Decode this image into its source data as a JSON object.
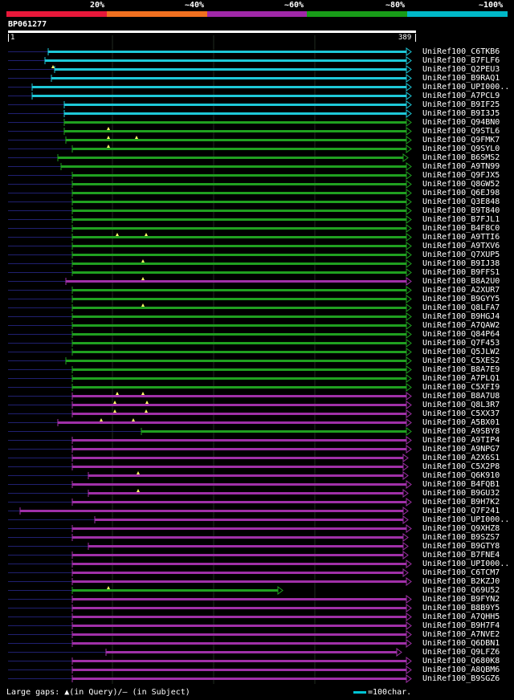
{
  "legend": {
    "labels": [
      "20%",
      "~40%",
      "~60%",
      "~80%",
      "~100%"
    ],
    "colors": [
      "#e8183a",
      "#f07020",
      "#a028a8",
      "#189c18",
      "#00b8c8"
    ]
  },
  "query": {
    "id": "BP061277",
    "start": "1",
    "end": "389"
  },
  "colors": {
    "cyan": "#1ec8d8",
    "green": "#20a020",
    "purple": "#a030a8",
    "dark": "#202070",
    "gap": "#ffff66"
  },
  "hits": [
    {
      "name": "UniRef100_C6TKB6",
      "color": "cyan",
      "start": 60,
      "end": 512,
      "arrow": true,
      "gaps": []
    },
    {
      "name": "UniRef100_B7FLF6",
      "color": "cyan",
      "start": 56,
      "end": 512,
      "arrow": true,
      "gaps": []
    },
    {
      "name": "UniRef100_Q2PEU3",
      "color": "cyan",
      "start": 68,
      "end": 512,
      "arrow": true,
      "gaps": [
        66
      ]
    },
    {
      "name": "UniRef100_B9RAQ1",
      "color": "cyan",
      "start": 64,
      "end": 512,
      "arrow": true,
      "gaps": []
    },
    {
      "name": "UniRef100_UPI000..",
      "color": "cyan",
      "start": 40,
      "end": 512,
      "arrow": true,
      "gaps": []
    },
    {
      "name": "UniRef100_A7PCL9",
      "color": "cyan",
      "start": 40,
      "end": 512,
      "arrow": true,
      "gaps": []
    },
    {
      "name": "UniRef100_B9IF25",
      "color": "cyan",
      "start": 80,
      "end": 512,
      "arrow": true,
      "gaps": []
    },
    {
      "name": "UniRef100_B9I3J5",
      "color": "cyan",
      "start": 80,
      "end": 512,
      "arrow": true,
      "gaps": []
    },
    {
      "name": "UniRef100_Q94BN0",
      "color": "green",
      "start": 80,
      "end": 512,
      "arrow": true,
      "gaps": []
    },
    {
      "name": "UniRef100_Q9STL6",
      "color": "green",
      "start": 80,
      "end": 512,
      "arrow": true,
      "gaps": [
        135
      ]
    },
    {
      "name": "UniRef100_Q9FMK7",
      "color": "green",
      "start": 82,
      "end": 512,
      "arrow": true,
      "gaps": [
        135,
        170
      ]
    },
    {
      "name": "UniRef100_Q9SYL0",
      "color": "green",
      "start": 90,
      "end": 512,
      "arrow": true,
      "gaps": [
        135
      ]
    },
    {
      "name": "UniRef100_B6SMS2",
      "color": "green",
      "start": 72,
      "end": 508,
      "arrow": true,
      "gaps": []
    },
    {
      "name": "UniRef100_A9TN99",
      "color": "green",
      "start": 76,
      "end": 512,
      "arrow": true,
      "gaps": []
    },
    {
      "name": "UniRef100_Q9FJX5",
      "color": "green",
      "start": 90,
      "end": 512,
      "arrow": true,
      "gaps": []
    },
    {
      "name": "UniRef100_Q8GW52",
      "color": "green",
      "start": 90,
      "end": 512,
      "arrow": true,
      "gaps": []
    },
    {
      "name": "UniRef100_Q6EJ98",
      "color": "green",
      "start": 90,
      "end": 512,
      "arrow": true,
      "gaps": []
    },
    {
      "name": "UniRef100_Q3E848",
      "color": "green",
      "start": 90,
      "end": 512,
      "arrow": true,
      "gaps": []
    },
    {
      "name": "UniRef100_B9T840",
      "color": "green",
      "start": 90,
      "end": 512,
      "arrow": true,
      "gaps": []
    },
    {
      "name": "UniRef100_B7FJL1",
      "color": "green",
      "start": 90,
      "end": 512,
      "arrow": true,
      "gaps": []
    },
    {
      "name": "UniRef100_B4F8C0",
      "color": "green",
      "start": 90,
      "end": 512,
      "arrow": true,
      "gaps": []
    },
    {
      "name": "UniRef100_A9TTI6",
      "color": "green",
      "start": 90,
      "end": 512,
      "arrow": true,
      "gaps": [
        146,
        182
      ]
    },
    {
      "name": "UniRef100_A9TXV6",
      "color": "green",
      "start": 90,
      "end": 512,
      "arrow": true,
      "gaps": []
    },
    {
      "name": "UniRef100_Q7XUP5",
      "color": "green",
      "start": 90,
      "end": 512,
      "arrow": true,
      "gaps": []
    },
    {
      "name": "UniRef100_B9IJ38",
      "color": "green",
      "start": 90,
      "end": 512,
      "arrow": true,
      "gaps": [
        178
      ]
    },
    {
      "name": "UniRef100_B9FFS1",
      "color": "green",
      "start": 90,
      "end": 512,
      "arrow": true,
      "gaps": []
    },
    {
      "name": "UniRef100_B8A2U0",
      "color": "purple",
      "start": 82,
      "end": 512,
      "arrow": true,
      "gaps": [
        178
      ]
    },
    {
      "name": "UniRef100_A2XUR7",
      "color": "green",
      "start": 90,
      "end": 512,
      "arrow": true,
      "gaps": []
    },
    {
      "name": "UniRef100_B9GYY5",
      "color": "green",
      "start": 90,
      "end": 512,
      "arrow": true,
      "gaps": []
    },
    {
      "name": "UniRef100_Q8LFA7",
      "color": "green",
      "start": 90,
      "end": 512,
      "arrow": true,
      "gaps": [
        178
      ]
    },
    {
      "name": "UniRef100_B9HGJ4",
      "color": "green",
      "start": 90,
      "end": 512,
      "arrow": true,
      "gaps": []
    },
    {
      "name": "UniRef100_A7QAW2",
      "color": "green",
      "start": 90,
      "end": 512,
      "arrow": true,
      "gaps": []
    },
    {
      "name": "UniRef100_Q84P64",
      "color": "green",
      "start": 90,
      "end": 512,
      "arrow": true,
      "gaps": []
    },
    {
      "name": "UniRef100_Q7F453",
      "color": "green",
      "start": 90,
      "end": 512,
      "arrow": true,
      "gaps": []
    },
    {
      "name": "UniRef100_Q5JLW2",
      "color": "green",
      "start": 90,
      "end": 512,
      "arrow": true,
      "gaps": []
    },
    {
      "name": "UniRef100_C5XES2",
      "color": "green",
      "start": 82,
      "end": 512,
      "arrow": true,
      "gaps": []
    },
    {
      "name": "UniRef100_B8A7E9",
      "color": "green",
      "start": 90,
      "end": 512,
      "arrow": true,
      "gaps": []
    },
    {
      "name": "UniRef100_A7PLQ1",
      "color": "green",
      "start": 90,
      "end": 512,
      "arrow": true,
      "gaps": []
    },
    {
      "name": "UniRef100_C5XFI9",
      "color": "green",
      "start": 90,
      "end": 512,
      "arrow": true,
      "gaps": []
    },
    {
      "name": "UniRef100_B8A7U8",
      "color": "purple",
      "start": 90,
      "end": 512,
      "arrow": true,
      "gaps": [
        146,
        178
      ]
    },
    {
      "name": "UniRef100_Q8L3R7",
      "color": "purple",
      "start": 90,
      "end": 512,
      "arrow": true,
      "gaps": [
        143,
        183
      ]
    },
    {
      "name": "UniRef100_C5XX37",
      "color": "purple",
      "start": 90,
      "end": 512,
      "arrow": true,
      "gaps": [
        143,
        182
      ]
    },
    {
      "name": "UniRef100_A5BX01",
      "color": "purple",
      "start": 72,
      "end": 512,
      "arrow": true,
      "gaps": [
        126,
        166
      ]
    },
    {
      "name": "UniRef100_A9SBY8",
      "color": "green",
      "start": 176,
      "end": 512,
      "arrow": true,
      "gaps": []
    },
    {
      "name": "UniRef100_A9TIP4",
      "color": "purple",
      "start": 90,
      "end": 512,
      "arrow": true,
      "gaps": []
    },
    {
      "name": "UniRef100_A9NPG7",
      "color": "purple",
      "start": 90,
      "end": 512,
      "arrow": true,
      "gaps": []
    },
    {
      "name": "UniRef100_A2X6S1",
      "color": "purple",
      "start": 90,
      "end": 508,
      "arrow": true,
      "gaps": []
    },
    {
      "name": "UniRef100_C5X2P8",
      "color": "purple",
      "start": 90,
      "end": 508,
      "arrow": true,
      "gaps": []
    },
    {
      "name": "UniRef100_Q6K910",
      "color": "purple",
      "start": 110,
      "end": 508,
      "arrow": true,
      "gaps": [
        172
      ]
    },
    {
      "name": "UniRef100_B4FQB1",
      "color": "purple",
      "start": 90,
      "end": 512,
      "arrow": true,
      "gaps": []
    },
    {
      "name": "UniRef100_B9GU32",
      "color": "purple",
      "start": 110,
      "end": 508,
      "arrow": true,
      "gaps": [
        172
      ]
    },
    {
      "name": "UniRef100_B9H7K2",
      "color": "purple",
      "start": 90,
      "end": 512,
      "arrow": true,
      "gaps": []
    },
    {
      "name": "UniRef100_Q7F241",
      "color": "purple",
      "start": 25,
      "end": 508,
      "arrow": true,
      "gaps": []
    },
    {
      "name": "UniRef100_UPI000..",
      "color": "purple",
      "start": 118,
      "end": 508,
      "arrow": true,
      "gaps": []
    },
    {
      "name": "UniRef100_Q9XHZ8",
      "color": "purple",
      "start": 90,
      "end": 512,
      "arrow": true,
      "gaps": []
    },
    {
      "name": "UniRef100_B9SZS7",
      "color": "purple",
      "start": 90,
      "end": 508,
      "arrow": true,
      "gaps": []
    },
    {
      "name": "UniRef100_B9GTY8",
      "color": "purple",
      "start": 110,
      "end": 508,
      "arrow": true,
      "gaps": []
    },
    {
      "name": "UniRef100_B7FNE4",
      "color": "purple",
      "start": 90,
      "end": 508,
      "arrow": true,
      "gaps": []
    },
    {
      "name": "UniRef100_UPI000..",
      "color": "purple",
      "start": 90,
      "end": 512,
      "arrow": true,
      "gaps": []
    },
    {
      "name": "UniRef100_C6TCM7",
      "color": "purple",
      "start": 90,
      "end": 508,
      "arrow": true,
      "gaps": []
    },
    {
      "name": "UniRef100_B2KZJ0",
      "color": "purple",
      "start": 90,
      "end": 512,
      "arrow": true,
      "gaps": []
    },
    {
      "name": "UniRef100_Q69U52",
      "color": "green",
      "start": 90,
      "end": 352,
      "arrow": true,
      "gaps": [
        135
      ]
    },
    {
      "name": "UniRef100_B9FYN2",
      "color": "purple",
      "start": 90,
      "end": 512,
      "arrow": true,
      "gaps": []
    },
    {
      "name": "UniRef100_B8B9Y5",
      "color": "purple",
      "start": 90,
      "end": 512,
      "arrow": true,
      "gaps": []
    },
    {
      "name": "UniRef100_A7QHH5",
      "color": "purple",
      "start": 90,
      "end": 512,
      "arrow": true,
      "gaps": []
    },
    {
      "name": "UniRef100_B9H7F4",
      "color": "purple",
      "start": 90,
      "end": 512,
      "arrow": true,
      "gaps": []
    },
    {
      "name": "UniRef100_A7NVE2",
      "color": "purple",
      "start": 90,
      "end": 512,
      "arrow": true,
      "gaps": []
    },
    {
      "name": "UniRef100_Q6DBN1",
      "color": "purple",
      "start": 90,
      "end": 512,
      "arrow": true,
      "gaps": []
    },
    {
      "name": "UniRef100_Q9LFZ6",
      "color": "purple",
      "start": 132,
      "end": 500,
      "arrow": true,
      "gaps": []
    },
    {
      "name": "UniRef100_Q680K8",
      "color": "purple",
      "start": 90,
      "end": 512,
      "arrow": true,
      "gaps": []
    },
    {
      "name": "UniRef100_A8QBM6",
      "color": "purple",
      "start": 90,
      "end": 512,
      "arrow": true,
      "gaps": []
    },
    {
      "name": "UniRef100_B9SGZ6",
      "color": "purple",
      "start": 90,
      "end": 512,
      "arrow": true,
      "gaps": []
    }
  ],
  "footer": {
    "gaps_text": "Large gaps: ▲(in Query)/– (in Subject)",
    "scale_text": "=100char."
  }
}
